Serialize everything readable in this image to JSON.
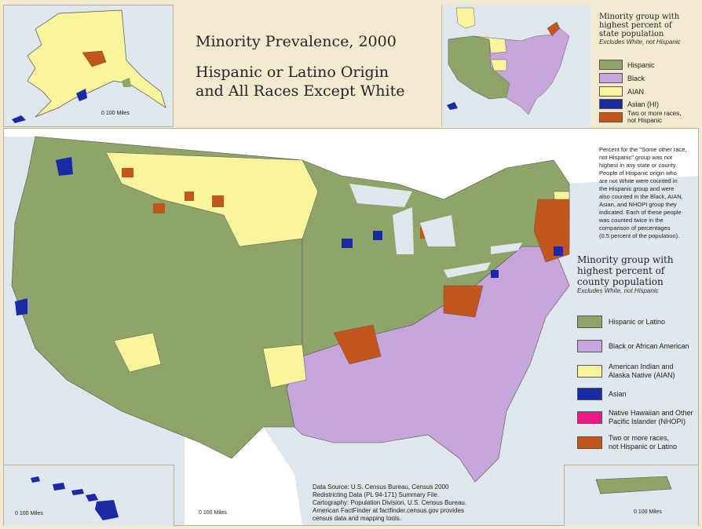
{
  "title": {
    "main": "Minority Prevalence, 2000",
    "subtitle_line1": "Hispanic or Latino Origin",
    "subtitle_line2": "and All Races Except White"
  },
  "colors": {
    "hispanic": "#8fa468",
    "black": "#c7a5dc",
    "aian": "#f8f49c",
    "asian": "#1a2aa6",
    "nhopi": "#ec1b84",
    "two_or_more": "#c4561c",
    "water": "#dfe6ec",
    "canada_mexico": "#ffffff"
  },
  "state_legend": {
    "title_line1": "Minority group with",
    "title_line2": "highest percent of",
    "title_line3": "state population",
    "subtitle": "Excludes White, not Hispanic",
    "items": [
      {
        "label": "Hispanic",
        "color": "#8fa468"
      },
      {
        "label": "Black",
        "color": "#c7a5dc"
      },
      {
        "label": "AIAN",
        "color": "#f8f49c"
      },
      {
        "label": "Asian (HI)",
        "color": "#1a2aa6"
      },
      {
        "label_line1": "Two or more races,",
        "label_line2": "not Hispanic",
        "color": "#c4561c"
      }
    ]
  },
  "county_legend": {
    "title_line1": "Minority group with",
    "title_line2": "highest percent of",
    "title_line3": "county population",
    "subtitle": "Excludes White, not Hispanic",
    "items": [
      {
        "label": "Hispanic or Latino",
        "color": "#8fa468"
      },
      {
        "label": "Black or African American",
        "color": "#c7a5dc"
      },
      {
        "label_line1": "American Indian and",
        "label_line2": "Alaska Native (AIAN)",
        "color": "#f8f49c"
      },
      {
        "label": "Asian",
        "color": "#1a2aa6"
      },
      {
        "label_line1": "Native Hawaiian and Other",
        "label_line2": "Pacific Islander (NHOPI)",
        "color": "#ec1b84"
      },
      {
        "label_line1": "Two or more races,",
        "label_line2": "not Hispanic or Latino",
        "color": "#c4561c"
      }
    ]
  },
  "note_lines": [
    "Percent for the \"Some other race,",
    "not Hispanic\" group was not",
    "highest in any state or county.",
    "People of Hispanic origin who",
    "are not White were counted in",
    "the Hispanic group and were",
    "also counted in the Black, AIAN,",
    "Asian, and NHOPI group they",
    "indicated. Each of these people",
    "was counted twice in the",
    "comparison of percentages",
    "(0.5 percent of the population)."
  ],
  "source_lines": [
    "Data Source: U.S. Census Bureau, Census 2000",
    "Redistricting Data (PL 94-171) Summary File.",
    "Cartography: Population Division, U.S. Census Bureau.",
    "American FactFinder at factfinder.census.gov provides",
    "census data and mapping tools."
  ],
  "scale_labels": {
    "alaska": "100 Miles",
    "hawaii": "100 Miles",
    "main": "100 Miles",
    "puerto_rico": "100 Miles",
    "zero": "0"
  }
}
